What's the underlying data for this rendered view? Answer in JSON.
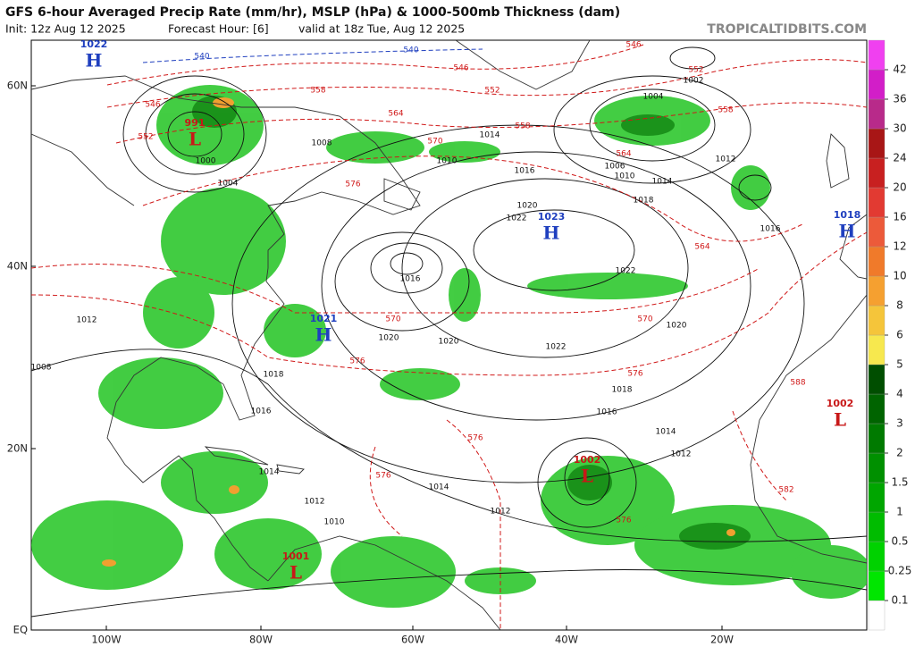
{
  "header": {
    "title": "GFS 6-hour Averaged Precip Rate (mm/hr), MSLP (hPa) & 1000-500mb Thickness (dam)",
    "init": "Init: 12z Aug 12 2025",
    "forecast_hour": "Forecast Hour: [6]",
    "valid": "valid at 18z Tue, Aug 12 2025",
    "watermark": "TROPICALTIDBITS.COM"
  },
  "map": {
    "lat_labels": [
      "60N",
      "40N",
      "20N",
      "EQ"
    ],
    "lon_labels": [
      "100W",
      "80W",
      "60W",
      "40W",
      "20W"
    ],
    "pressure_centers": [
      {
        "kind": "H",
        "value": "1022"
      },
      {
        "kind": "L",
        "value": "991"
      },
      {
        "kind": "H",
        "value": "1021"
      },
      {
        "kind": "H",
        "value": "1023"
      },
      {
        "kind": "H",
        "value": "1018"
      },
      {
        "kind": "L",
        "value": "1002"
      },
      {
        "kind": "L",
        "value": "1002"
      },
      {
        "kind": "L",
        "value": "1001"
      }
    ],
    "isobar_labels": [
      "1016",
      "1020",
      "1020",
      "1022",
      "1018",
      "1016",
      "1014",
      "1012",
      "1014",
      "1012",
      "1010",
      "1012",
      "1014",
      "1016",
      "1018",
      "1008",
      "1012",
      "1004",
      "1002",
      "1006",
      "1010",
      "1012",
      "1014",
      "1018",
      "1016",
      "1022",
      "1020",
      "1016",
      "1014",
      "1020",
      "1022",
      "1000",
      "1004",
      "1008",
      "1010"
    ],
    "thickness_labels": [
      "546",
      "552",
      "558",
      "564",
      "570",
      "576",
      "546",
      "552",
      "558",
      "564",
      "564",
      "570",
      "576",
      "576",
      "576",
      "576",
      "582",
      "588",
      "552",
      "558",
      "546",
      "570",
      "576"
    ],
    "thickness_labels_blue": [
      "540",
      "540"
    ]
  },
  "colorbar": {
    "levels": [
      0.1,
      0.25,
      0.5,
      1,
      1.5,
      2,
      3,
      4,
      5,
      6,
      8,
      10,
      12,
      16,
      20,
      24,
      30,
      36,
      42
    ],
    "colors": [
      "#ffffff",
      "#00e600",
      "#00d200",
      "#00bc00",
      "#00a600",
      "#009000",
      "#007a00",
      "#006400",
      "#004e00",
      "#f7e84e",
      "#f5c53a",
      "#f5a030",
      "#f07a2a",
      "#ec5a3a",
      "#e23a32",
      "#c82020",
      "#a81616",
      "#b82a8a",
      "#d21ec8",
      "#f040f0"
    ]
  }
}
